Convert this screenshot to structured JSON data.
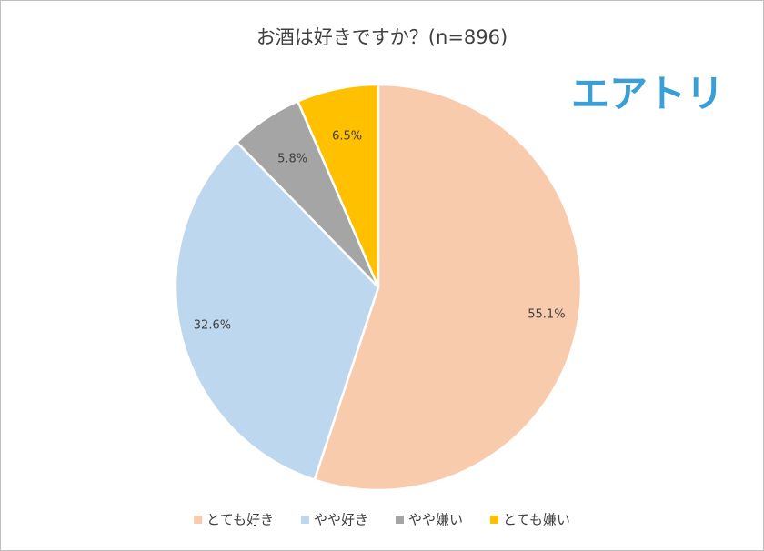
{
  "chart_data": {
    "type": "pie",
    "title": "お酒は好きですか？(n=896)",
    "logo": "エアトリ",
    "categories": [
      "とても好き",
      "やや好き",
      "やや嫌い",
      "とても嫌い"
    ],
    "values": [
      55.1,
      32.6,
      5.8,
      6.5
    ],
    "value_labels": [
      "55.1%",
      "32.6%",
      "5.8%",
      "6.5%"
    ],
    "colors": [
      "#f8cbad",
      "#bdd7ee",
      "#a5a5a5",
      "#ffc000"
    ],
    "legend": "bottom"
  }
}
